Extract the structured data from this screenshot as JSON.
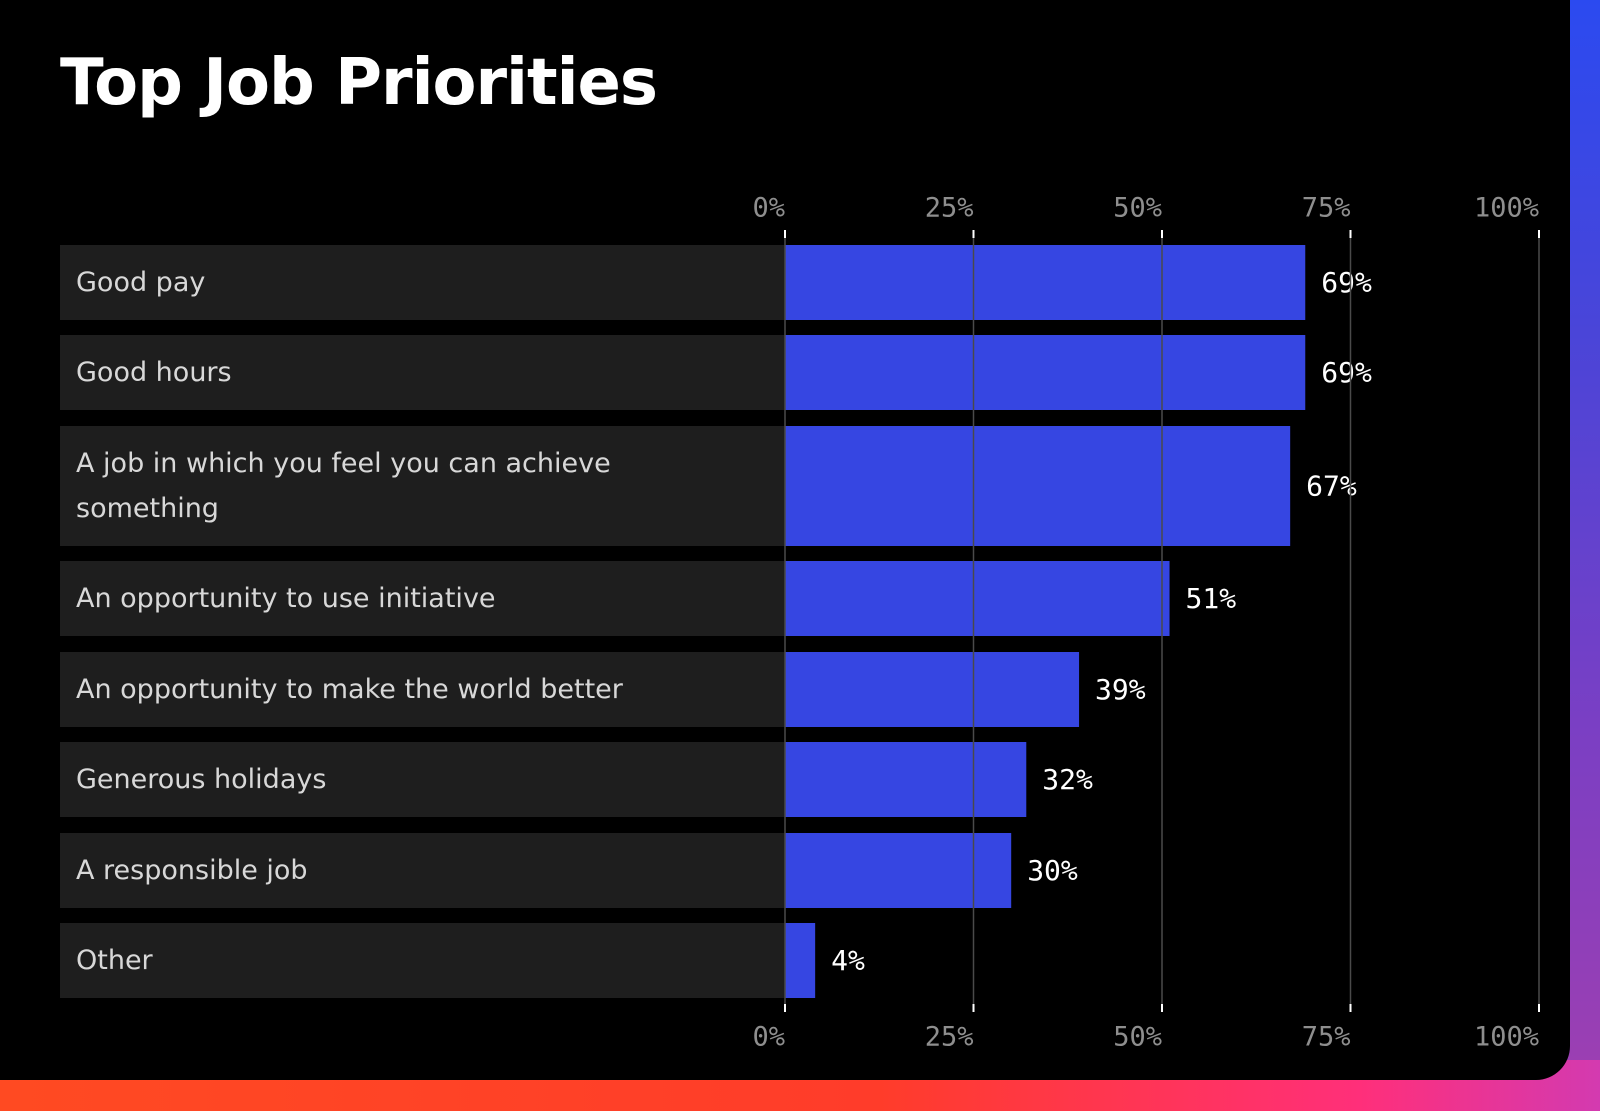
{
  "colors": {
    "background": "#000000",
    "row_background": "#1e1e1e",
    "bar": "#3646e2",
    "gridline": "#4a4a4a",
    "tick_text": "#8e8e8e",
    "label_text": "#d8d8d8",
    "value_text": "#ffffff"
  },
  "chart_data": {
    "type": "bar",
    "orientation": "horizontal",
    "title": "Top Job Priorities",
    "xlabel": "",
    "ylabel": "",
    "xlim": [
      0,
      100
    ],
    "grid": true,
    "ticks": [
      "0%",
      "25%",
      "50%",
      "75%",
      "100%"
    ],
    "tick_values": [
      0,
      25,
      50,
      75,
      100
    ],
    "categories": [
      [
        "Good pay"
      ],
      [
        "Good hours"
      ],
      [
        "A job in which you feel you can achieve",
        "something"
      ],
      [
        "An opportunity to use initiative"
      ],
      [
        "An opportunity to make the world better"
      ],
      [
        "Generous holidays"
      ],
      [
        "A responsible job"
      ],
      [
        "Other"
      ]
    ],
    "values": [
      69,
      69,
      67,
      51,
      39,
      32,
      30,
      4
    ],
    "value_labels": [
      "69%",
      "69%",
      "67%",
      "51%",
      "39%",
      "32%",
      "30%",
      "4%"
    ]
  }
}
